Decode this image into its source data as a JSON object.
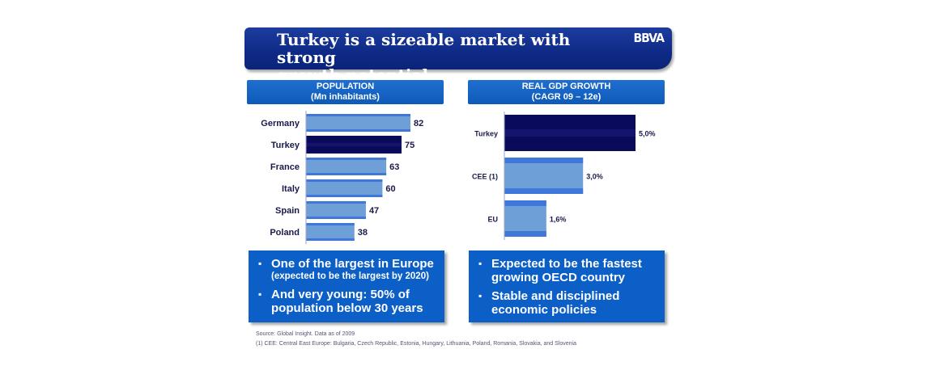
{
  "title": "Turkey is a sizeable market with strong growth potential",
  "title_lines": [
    "Turkey is a sizeable market with strong",
    "growth potential"
  ],
  "logo": "BBVA",
  "left_panel": {
    "header_line1": "POPULATION",
    "header_line2": "(Mn inhabitants)",
    "bullets": [
      {
        "text": "One of the largest in Europe",
        "sub": "(expected to be the largest by 2020)"
      },
      {
        "text": "And very young: 50% of population below 30 years",
        "sub": ""
      }
    ]
  },
  "right_panel": {
    "header_line1": "REAL GDP GROWTH",
    "header_line2": "(CAGR 09 – 12e)",
    "bullets": [
      {
        "text": "Expected to be the fastest growing OECD country",
        "sub": ""
      },
      {
        "text": "Stable and disciplined economic policies",
        "sub": ""
      }
    ]
  },
  "chart_data": [
    {
      "type": "bar",
      "orientation": "horizontal",
      "title": "POPULATION (Mn inhabitants)",
      "categories": [
        "Germany",
        "Turkey",
        "France",
        "Italy",
        "Spain",
        "Poland"
      ],
      "values": [
        82,
        75,
        63,
        60,
        47,
        38
      ],
      "value_labels": [
        "82",
        "75",
        "63",
        "60",
        "47",
        "38"
      ],
      "highlight": "Turkey",
      "colors": {
        "default": "#6e9fd6",
        "edge": "#3f78d8",
        "highlight": "#0a0a5a"
      }
    },
    {
      "type": "bar",
      "orientation": "horizontal",
      "title": "REAL GDP GROWTH (CAGR 09 – 12e)",
      "categories": [
        "Turkey",
        "CEE (1)",
        "EU"
      ],
      "values": [
        5.0,
        3.0,
        1.6
      ],
      "value_labels": [
        "5,0%",
        "3,0%",
        "1,6%"
      ],
      "highlight": "Turkey",
      "colors": {
        "default": "#6e9fd6",
        "edge": "#3f78d8",
        "highlight": "#0a0a5a"
      }
    }
  ],
  "footnotes": [
    "Source: Global Insight. Data as of 2009",
    "(1) CEE: Central East Europe: Bulgaria, Czech Republic, Estonia, Hungary, Lithuania, Poland, Romania, Slovakia, and Slovenia"
  ]
}
